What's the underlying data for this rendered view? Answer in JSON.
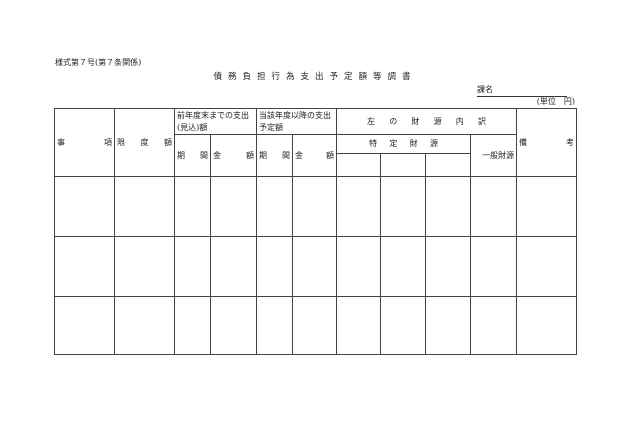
{
  "form_number": "様式第７号(第７条関係)",
  "title": "債務負担行為支出予定額等調書",
  "section_label": "課名",
  "unit": "(単位　円)",
  "headers": {
    "item": [
      "事",
      "項"
    ],
    "limit": [
      "限",
      "度",
      "額"
    ],
    "prior": "前年度末までの支出(見込)額",
    "future": "当該年度以降の支出予定額",
    "period": [
      "期",
      "間"
    ],
    "amount": [
      "金",
      "額"
    ],
    "funding": [
      "左",
      "の",
      "財",
      "源",
      "内",
      "訳"
    ],
    "specific": [
      "特",
      "定",
      "財",
      "源"
    ],
    "general": "一般財源",
    "remarks": [
      "備",
      "考"
    ]
  },
  "rows": [
    {},
    {},
    {}
  ]
}
